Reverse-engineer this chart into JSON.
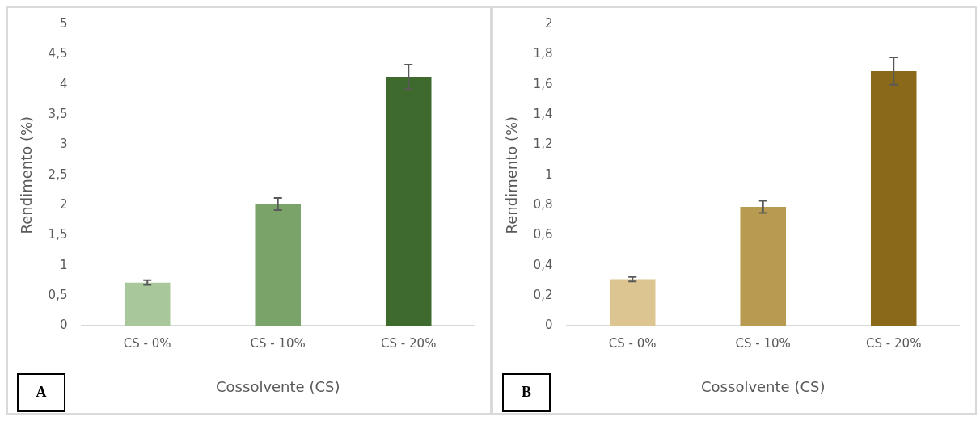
{
  "chart_data": [
    {
      "type": "bar",
      "categories": [
        "CS - 0%",
        "CS - 10%",
        "CS - 20%"
      ],
      "values": [
        0.72,
        2.02,
        4.13
      ],
      "errors": [
        0.04,
        0.1,
        0.2
      ],
      "colors": [
        "#a8c79a",
        "#7aa36a",
        "#3f6a2e"
      ],
      "xlabel": "Cossolvente (CS)",
      "ylabel": "Rendimento (%)",
      "ylim": [
        0,
        5
      ],
      "yticks": [
        0,
        {
          "value": 0.5,
          "label": "0,5"
        },
        1,
        {
          "value": 1.5,
          "label": "1,5"
        },
        2,
        {
          "value": 2.5,
          "label": "2,5"
        },
        3,
        {
          "value": 3.5,
          "label": "3,5"
        },
        4,
        {
          "value": 4.5,
          "label": "4,5"
        },
        5
      ],
      "grid": false,
      "legend": false,
      "annotations": [
        "A"
      ]
    },
    {
      "type": "bar",
      "categories": [
        "CS - 0%",
        "CS - 10%",
        "CS - 20%"
      ],
      "values": [
        0.31,
        0.79,
        1.69
      ],
      "errors": [
        0.015,
        0.04,
        0.09
      ],
      "colors": [
        "#dcc590",
        "#b89a50",
        "#8a6a1a"
      ],
      "xlabel": "Cossolvente (CS)",
      "ylabel": "Rendimento (%)",
      "ylim": [
        0,
        2
      ],
      "yticks": [
        0,
        {
          "value": 0.2,
          "label": "0,2"
        },
        {
          "value": 0.4,
          "label": "0,4"
        },
        {
          "value": 0.6,
          "label": "0,6"
        },
        {
          "value": 0.8,
          "label": "0,8"
        },
        1,
        {
          "value": 1.2,
          "label": "1,2"
        },
        {
          "value": 1.4,
          "label": "1,4"
        },
        {
          "value": 1.6,
          "label": "1,6"
        },
        {
          "value": 1.8,
          "label": "1,8"
        },
        2
      ],
      "grid": false,
      "legend": false,
      "annotations": [
        "B"
      ]
    }
  ]
}
